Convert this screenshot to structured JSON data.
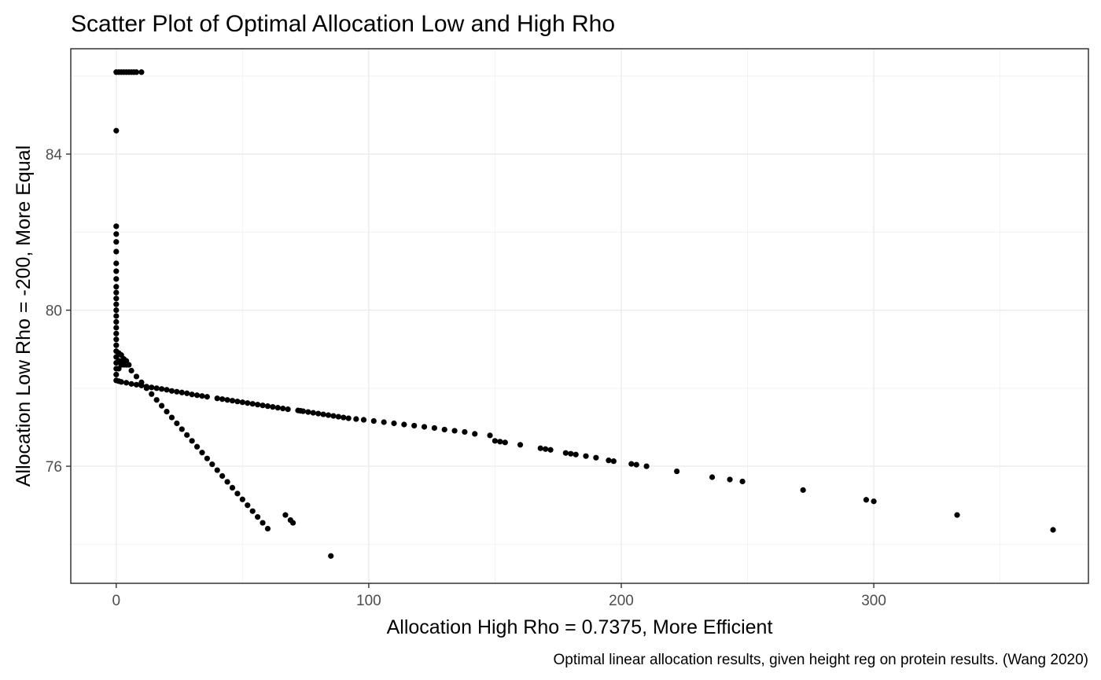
{
  "chart_data": {
    "type": "scatter",
    "title": "Scatter Plot of Optimal Allocation Low and High Rho",
    "xlabel": "Allocation High Rho = 0.7375, More Efficient",
    "ylabel": "Allocation Low Rho = -200, More Equal",
    "caption": "Optimal linear allocation results, given height reg on protein results. (Wang 2020)",
    "xlim": [
      -18,
      385
    ],
    "ylim": [
      73.0,
      86.7
    ],
    "x_ticks": [
      0,
      100,
      200,
      300
    ],
    "x_tick_labels": [
      "0",
      "100",
      "200",
      "300"
    ],
    "y_ticks": [
      76,
      80,
      84
    ],
    "y_tick_labels": [
      "76",
      "80",
      "84"
    ],
    "grid": true,
    "theme": "bw",
    "point_color": "#000000",
    "points": [
      [
        0,
        86.1
      ],
      [
        1,
        86.1
      ],
      [
        2,
        86.1
      ],
      [
        3,
        86.1
      ],
      [
        4,
        86.1
      ],
      [
        5,
        86.1
      ],
      [
        6,
        86.1
      ],
      [
        7,
        86.1
      ],
      [
        8,
        86.1
      ],
      [
        10,
        86.1
      ],
      [
        0,
        84.6
      ],
      [
        0,
        82.15
      ],
      [
        0,
        81.95
      ],
      [
        0,
        81.75
      ],
      [
        0,
        81.5
      ],
      [
        0,
        81.2
      ],
      [
        0,
        81.0
      ],
      [
        0,
        80.8
      ],
      [
        0,
        80.6
      ],
      [
        0,
        80.45
      ],
      [
        0,
        80.3
      ],
      [
        0,
        80.15
      ],
      [
        0,
        80.0
      ],
      [
        0,
        79.85
      ],
      [
        0,
        79.7
      ],
      [
        0,
        79.55
      ],
      [
        0,
        79.4
      ],
      [
        0,
        79.25
      ],
      [
        0,
        79.1
      ],
      [
        0,
        78.95
      ],
      [
        0,
        78.8
      ],
      [
        0,
        78.65
      ],
      [
        0,
        78.5
      ],
      [
        0,
        78.35
      ],
      [
        0,
        78.2
      ],
      [
        1,
        78.9
      ],
      [
        1,
        78.7
      ],
      [
        1,
        78.5
      ],
      [
        2,
        78.85
      ],
      [
        2,
        78.6
      ],
      [
        3,
        78.75
      ],
      [
        3,
        78.6
      ],
      [
        4,
        78.7
      ],
      [
        5,
        78.6
      ],
      [
        1,
        78.18
      ],
      [
        2,
        78.16
      ],
      [
        4,
        78.14
      ],
      [
        6,
        78.11
      ],
      [
        8,
        78.09
      ],
      [
        10,
        78.07
      ],
      [
        12,
        78.04
      ],
      [
        14,
        78.02
      ],
      [
        16,
        78.0
      ],
      [
        18,
        77.98
      ],
      [
        20,
        77.96
      ],
      [
        22,
        77.93
      ],
      [
        24,
        77.91
      ],
      [
        26,
        77.89
      ],
      [
        28,
        77.87
      ],
      [
        30,
        77.84
      ],
      [
        32,
        77.82
      ],
      [
        34,
        77.8
      ],
      [
        36,
        77.78
      ],
      [
        40,
        77.74
      ],
      [
        42,
        77.72
      ],
      [
        44,
        77.7
      ],
      [
        46,
        77.68
      ],
      [
        48,
        77.66
      ],
      [
        50,
        77.64
      ],
      [
        52,
        77.62
      ],
      [
        54,
        77.6
      ],
      [
        56,
        77.58
      ],
      [
        58,
        77.56
      ],
      [
        60,
        77.54
      ],
      [
        62,
        77.52
      ],
      [
        64,
        77.5
      ],
      [
        66,
        77.48
      ],
      [
        68,
        77.46
      ],
      [
        72,
        77.43
      ],
      [
        73,
        77.42
      ],
      [
        74,
        77.41
      ],
      [
        76,
        77.39
      ],
      [
        78,
        77.37
      ],
      [
        80,
        77.35
      ],
      [
        82,
        77.33
      ],
      [
        84,
        77.31
      ],
      [
        86,
        77.29
      ],
      [
        88,
        77.27
      ],
      [
        90,
        77.25
      ],
      [
        92,
        77.23
      ],
      [
        95,
        77.21
      ],
      [
        98,
        77.19
      ],
      [
        102,
        77.16
      ],
      [
        106,
        77.13
      ],
      [
        110,
        77.1
      ],
      [
        114,
        77.07
      ],
      [
        118,
        77.04
      ],
      [
        122,
        77.01
      ],
      [
        126,
        76.98
      ],
      [
        130,
        76.94
      ],
      [
        134,
        76.91
      ],
      [
        138,
        76.88
      ],
      [
        142,
        76.83
      ],
      [
        148,
        76.79
      ],
      [
        150,
        76.65
      ],
      [
        152,
        76.63
      ],
      [
        154,
        76.61
      ],
      [
        160,
        76.55
      ],
      [
        168,
        76.46
      ],
      [
        170,
        76.44
      ],
      [
        172,
        76.42
      ],
      [
        178,
        76.34
      ],
      [
        180,
        76.32
      ],
      [
        182,
        76.3
      ],
      [
        186,
        76.26
      ],
      [
        190,
        76.22
      ],
      [
        195,
        76.15
      ],
      [
        197,
        76.13
      ],
      [
        204,
        76.06
      ],
      [
        206,
        76.04
      ],
      [
        210,
        76.0
      ],
      [
        222,
        75.87
      ],
      [
        236,
        75.72
      ],
      [
        243,
        75.66
      ],
      [
        248,
        75.61
      ],
      [
        272,
        75.39
      ],
      [
        297,
        75.14
      ],
      [
        300,
        75.1
      ],
      [
        333,
        74.75
      ],
      [
        371,
        74.37
      ],
      [
        2,
        78.7
      ],
      [
        4,
        78.6
      ],
      [
        6,
        78.45
      ],
      [
        8,
        78.3
      ],
      [
        10,
        78.15
      ],
      [
        12,
        78.0
      ],
      [
        14,
        77.85
      ],
      [
        16,
        77.7
      ],
      [
        18,
        77.55
      ],
      [
        20,
        77.4
      ],
      [
        22,
        77.25
      ],
      [
        24,
        77.1
      ],
      [
        26,
        76.95
      ],
      [
        28,
        76.8
      ],
      [
        30,
        76.65
      ],
      [
        32,
        76.5
      ],
      [
        34,
        76.35
      ],
      [
        36,
        76.2
      ],
      [
        38,
        76.05
      ],
      [
        40,
        75.9
      ],
      [
        42,
        75.75
      ],
      [
        44,
        75.6
      ],
      [
        46,
        75.45
      ],
      [
        48,
        75.3
      ],
      [
        50,
        75.15
      ],
      [
        52,
        75.0
      ],
      [
        54,
        74.85
      ],
      [
        56,
        74.7
      ],
      [
        58,
        74.55
      ],
      [
        60,
        74.4
      ],
      [
        67,
        74.75
      ],
      [
        69,
        74.62
      ],
      [
        70,
        74.55
      ],
      [
        85,
        73.7
      ]
    ]
  }
}
